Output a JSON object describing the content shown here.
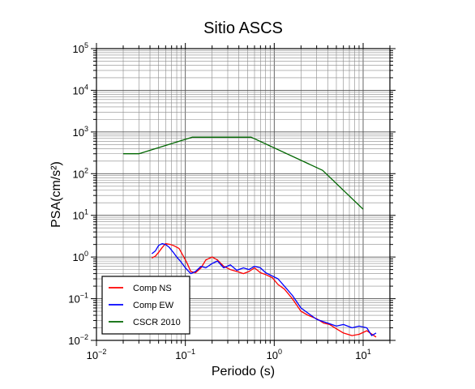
{
  "chart_data": {
    "type": "line",
    "title": "Sitio ASCS",
    "xlabel": "Periodo (s)",
    "ylabel": "PSA(cm/s²)",
    "xscale": "log",
    "yscale": "log",
    "xlim": [
      0.01,
      20
    ],
    "ylim": [
      0.01,
      100000
    ],
    "grid": true,
    "legend_position": "bottom-left",
    "x_tick_labels": [
      {
        "base": "10",
        "exp": "−2",
        "value": 0.01
      },
      {
        "base": "10",
        "exp": "−1",
        "value": 0.1
      },
      {
        "base": "10",
        "exp": "0",
        "value": 1
      },
      {
        "base": "10",
        "exp": "1",
        "value": 10
      }
    ],
    "y_tick_labels": [
      {
        "base": "10",
        "exp": "−2",
        "value": 0.01
      },
      {
        "base": "10",
        "exp": "−1",
        "value": 0.1
      },
      {
        "base": "10",
        "exp": "0",
        "value": 1
      },
      {
        "base": "10",
        "exp": "1",
        "value": 10
      },
      {
        "base": "10",
        "exp": "2",
        "value": 100
      },
      {
        "base": "10",
        "exp": "3",
        "value": 1000
      },
      {
        "base": "10",
        "exp": "4",
        "value": 10000
      },
      {
        "base": "10",
        "exp": "5",
        "value": 100000
      }
    ],
    "series": [
      {
        "name": "Comp NS",
        "color": "#ff0000",
        "points": [
          [
            0.042,
            0.95
          ],
          [
            0.046,
            1.05
          ],
          [
            0.05,
            1.3
          ],
          [
            0.055,
            1.7
          ],
          [
            0.06,
            2.1
          ],
          [
            0.068,
            2.0
          ],
          [
            0.075,
            1.85
          ],
          [
            0.085,
            1.6
          ],
          [
            0.095,
            1.05
          ],
          [
            0.105,
            0.7
          ],
          [
            0.115,
            0.45
          ],
          [
            0.13,
            0.42
          ],
          [
            0.15,
            0.55
          ],
          [
            0.17,
            0.85
          ],
          [
            0.2,
            1.0
          ],
          [
            0.23,
            0.85
          ],
          [
            0.27,
            0.6
          ],
          [
            0.32,
            0.5
          ],
          [
            0.38,
            0.45
          ],
          [
            0.45,
            0.4
          ],
          [
            0.52,
            0.45
          ],
          [
            0.6,
            0.55
          ],
          [
            0.7,
            0.42
          ],
          [
            0.8,
            0.38
          ],
          [
            0.95,
            0.32
          ],
          [
            1.1,
            0.22
          ],
          [
            1.3,
            0.17
          ],
          [
            1.6,
            0.1
          ],
          [
            2.0,
            0.05
          ],
          [
            2.4,
            0.04
          ],
          [
            3.0,
            0.033
          ],
          [
            3.6,
            0.026
          ],
          [
            4.2,
            0.024
          ],
          [
            5.0,
            0.019
          ],
          [
            6.0,
            0.015
          ],
          [
            7.5,
            0.013
          ],
          [
            9.0,
            0.014
          ],
          [
            11.0,
            0.017
          ],
          [
            14.0,
            0.012
          ]
        ]
      },
      {
        "name": "Comp EW",
        "color": "#0000ff",
        "points": [
          [
            0.042,
            1.2
          ],
          [
            0.046,
            1.4
          ],
          [
            0.05,
            1.9
          ],
          [
            0.055,
            2.1
          ],
          [
            0.06,
            2.0
          ],
          [
            0.066,
            1.7
          ],
          [
            0.073,
            1.3
          ],
          [
            0.08,
            1.0
          ],
          [
            0.09,
            0.75
          ],
          [
            0.1,
            0.55
          ],
          [
            0.115,
            0.4
          ],
          [
            0.13,
            0.45
          ],
          [
            0.15,
            0.6
          ],
          [
            0.17,
            0.55
          ],
          [
            0.2,
            0.7
          ],
          [
            0.23,
            0.8
          ],
          [
            0.27,
            0.55
          ],
          [
            0.32,
            0.65
          ],
          [
            0.38,
            0.48
          ],
          [
            0.45,
            0.55
          ],
          [
            0.52,
            0.5
          ],
          [
            0.6,
            0.6
          ],
          [
            0.7,
            0.55
          ],
          [
            0.8,
            0.42
          ],
          [
            0.95,
            0.35
          ],
          [
            1.1,
            0.3
          ],
          [
            1.3,
            0.2
          ],
          [
            1.6,
            0.12
          ],
          [
            2.0,
            0.06
          ],
          [
            2.4,
            0.045
          ],
          [
            3.0,
            0.032
          ],
          [
            3.6,
            0.028
          ],
          [
            4.2,
            0.025
          ],
          [
            5.0,
            0.022
          ],
          [
            6.0,
            0.024
          ],
          [
            7.5,
            0.02
          ],
          [
            9.0,
            0.022
          ],
          [
            11.0,
            0.02
          ],
          [
            12.5,
            0.013
          ],
          [
            14.0,
            0.015
          ]
        ]
      },
      {
        "name": "CSCR 2010",
        "color": "#006600",
        "points": [
          [
            0.02,
            300
          ],
          [
            0.03,
            300
          ],
          [
            0.12,
            750
          ],
          [
            0.55,
            750
          ],
          [
            3.5,
            120
          ],
          [
            10.0,
            14
          ]
        ]
      }
    ]
  }
}
